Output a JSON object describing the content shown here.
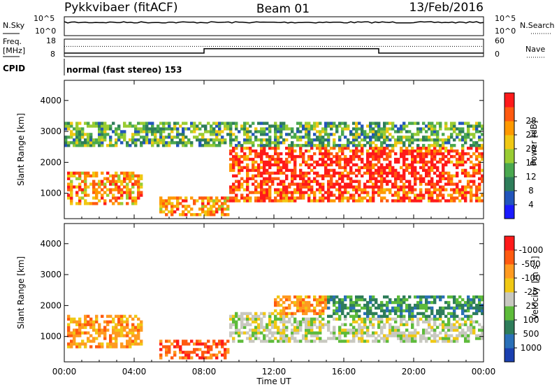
{
  "header": {
    "station": "Pykkvibaer (fitACF)",
    "beam": "Beam 01",
    "date": "13/Feb/2016"
  },
  "nsky_panel": {
    "left_label": "N.Sky",
    "right_label": "N.Search",
    "left_ticks": [
      "10^5",
      "10^0"
    ],
    "right_ticks": [
      "10^5",
      "10^0"
    ]
  },
  "freq_panel": {
    "left_label_1": "Freq.",
    "left_label_2": "[MHz]",
    "right_label": "Nave",
    "left_ticks": [
      "18",
      "8"
    ],
    "right_ticks": [
      "60",
      "0"
    ],
    "freq_steps": [
      {
        "t0": 0,
        "t1": 8,
        "value": 10.0
      },
      {
        "t0": 8,
        "t1": 18,
        "value": 12.5
      },
      {
        "t0": 18,
        "t1": 24,
        "value": 10.0
      }
    ],
    "nave_level": 35
  },
  "cpid": {
    "label": "CPID",
    "text": "normal (fast stereo) 153"
  },
  "chart_data": [
    {
      "type": "heatmap",
      "title": "",
      "xlabel": "",
      "ylabel": "Slant Range [km]",
      "xlim": [
        0,
        24
      ],
      "ylim": [
        180,
        4650
      ],
      "x_ticks": [
        0,
        4,
        8,
        12,
        16,
        20,
        24
      ],
      "y_ticks": [
        1000,
        2000,
        3000,
        4000
      ],
      "y_tick_labels": [
        "1000",
        "2000",
        "3000",
        "4000"
      ],
      "colorbar": {
        "label": "Power [dB]",
        "ticks": [
          "4",
          "8",
          "12",
          "16",
          "20",
          "24",
          "28"
        ],
        "colors": [
          "#1a1aff",
          "#2255bb",
          "#2e7d5a",
          "#4aa84f",
          "#99cc33",
          "#f0c814",
          "#ff9900",
          "#ff5a10",
          "#ff1a1a"
        ]
      },
      "echo_regions": [
        {
          "t0": 0.2,
          "t1": 4.5,
          "r0": 600,
          "r1": 1700,
          "level": 22
        },
        {
          "t0": 5.5,
          "t1": 9.5,
          "r0": 250,
          "r1": 900,
          "level": 24
        },
        {
          "t0": 9.5,
          "t1": 24,
          "r0": 700,
          "r1": 2500,
          "level": 26
        },
        {
          "t0": 11,
          "t1": 22,
          "r0": 1200,
          "r1": 2300,
          "level": 30
        },
        {
          "t0": 0,
          "t1": 24,
          "r0": 2500,
          "r1": 3300,
          "level": 10
        }
      ]
    },
    {
      "type": "heatmap",
      "title": "",
      "xlabel": "Time UT",
      "ylabel": "Slant Range [km]",
      "xlim": [
        0,
        24
      ],
      "ylim": [
        180,
        4650
      ],
      "x_ticks": [
        0,
        4,
        8,
        12,
        16,
        20,
        24
      ],
      "x_tick_labels": [
        "00:00",
        "04:00",
        "08:00",
        "12:00",
        "16:00",
        "20:00",
        "00:00"
      ],
      "y_ticks": [
        1000,
        2000,
        3000,
        4000
      ],
      "y_tick_labels": [
        "1000",
        "2000",
        "3000",
        "4000"
      ],
      "colorbar": {
        "label": "Velocity [m s-1]",
        "label_main": "Velocity",
        "label_unit": "[m s",
        "label_exp": "-1",
        "label_close": "]",
        "ticks": [
          "1000",
          "500",
          "100",
          "25",
          "-25",
          "-100",
          "-500",
          "-1000"
        ],
        "colors": [
          "#1a3fb0",
          "#2a70b8",
          "#2e7d5a",
          "#5dbb3a",
          "#c8c8c0",
          "#f0c814",
          "#ff9a20",
          "#ff5a10",
          "#ff1a1a"
        ]
      },
      "echo_regions": [
        {
          "t0": 0.2,
          "t1": 4.5,
          "r0": 600,
          "r1": 1700,
          "velocity": -300
        },
        {
          "t0": 5.5,
          "t1": 9.5,
          "r0": 250,
          "r1": 900,
          "velocity": -500
        },
        {
          "t0": 9.5,
          "t1": 24,
          "r0": 800,
          "r1": 1800,
          "velocity": 0
        },
        {
          "t0": 12,
          "t1": 15.5,
          "r0": 1700,
          "r1": 2300,
          "velocity": -300
        },
        {
          "t0": 15,
          "t1": 24,
          "r0": 1600,
          "r1": 2300,
          "velocity": 150
        }
      ]
    }
  ]
}
